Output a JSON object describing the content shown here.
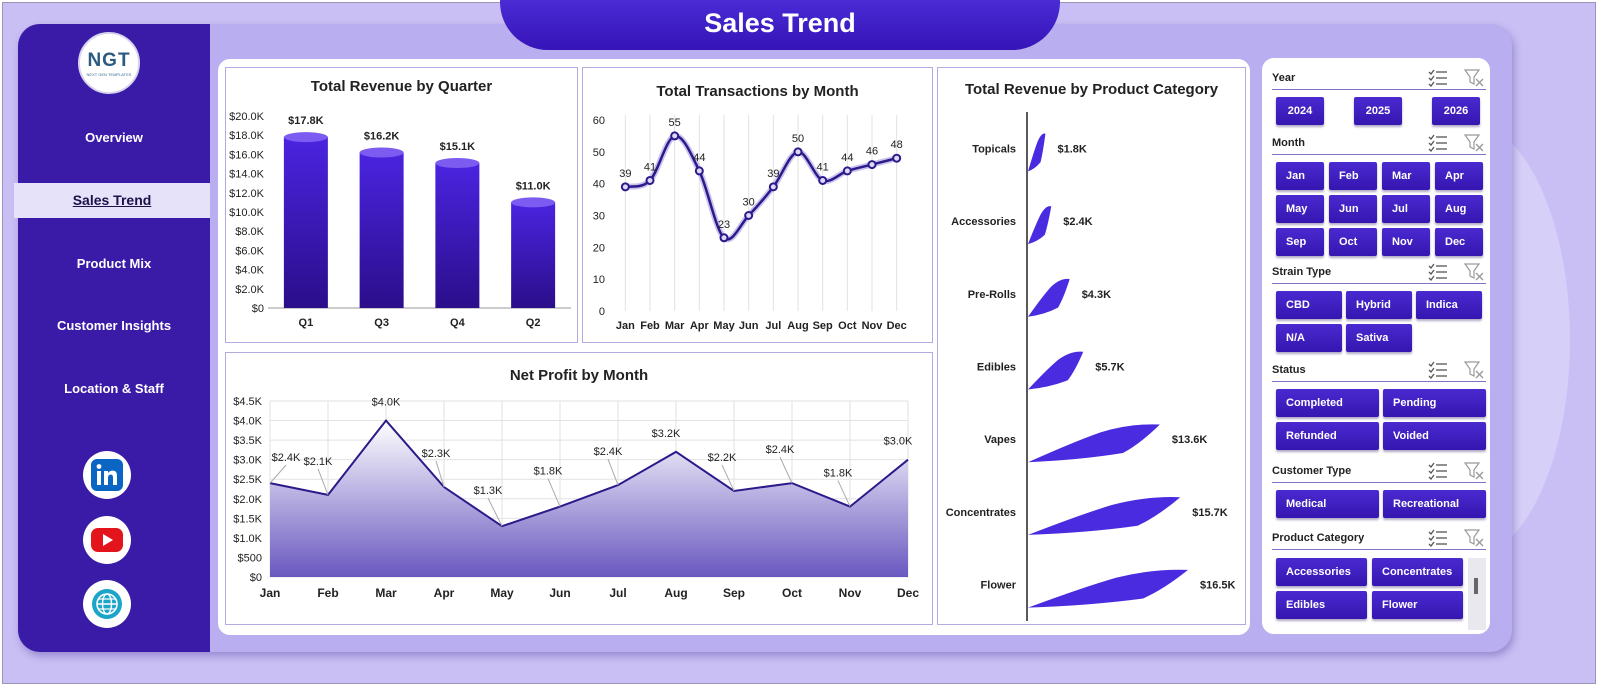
{
  "title": "Sales Trend",
  "logo": {
    "text": "NGT",
    "sub": "NEXT GEN TEMPLATES"
  },
  "nav": [
    "Overview",
    "Sales Trend",
    "Product Mix",
    "Customer Insights",
    "Location & Staff"
  ],
  "nav_active": "Sales Trend",
  "social": [
    "linkedin-icon",
    "youtube-icon",
    "globe-icon"
  ],
  "colors": {
    "primary": "#3a1ba8",
    "accent": "#4a2bd4",
    "panel": "#b9aef0"
  },
  "chart_data": [
    {
      "type": "bar",
      "title": "Total Revenue  by Quarter",
      "categories": [
        "Q1",
        "Q3",
        "Q4",
        "Q2"
      ],
      "values": [
        17.8,
        16.2,
        15.1,
        11.0
      ],
      "labels": [
        "$17.8K",
        "$16.2K",
        "$15.1K",
        "$11.0K"
      ],
      "yticks": [
        "$0",
        "$2.0K",
        "$4.0K",
        "$6.0K",
        "$8.0K",
        "$10.0K",
        "$12.0K",
        "$14.0K",
        "$16.0K",
        "$18.0K",
        "$20.0K"
      ],
      "ylim": [
        0,
        20
      ]
    },
    {
      "type": "line",
      "title": "Total Transactions by Month",
      "categories": [
        "Jan",
        "Feb",
        "Mar",
        "Apr",
        "May",
        "Jun",
        "Jul",
        "Aug",
        "Sep",
        "Oct",
        "Nov",
        "Dec"
      ],
      "values": [
        39,
        41,
        55,
        44,
        23,
        30,
        39,
        50,
        41,
        44,
        46,
        48
      ],
      "yticks": [
        "0",
        "10",
        "20",
        "30",
        "40",
        "50",
        "60"
      ],
      "ylim": [
        0,
        60
      ]
    },
    {
      "type": "area",
      "title": "Net Profit by Month",
      "categories": [
        "Jan",
        "Feb",
        "Mar",
        "Apr",
        "May",
        "Jun",
        "Jul",
        "Aug",
        "Sep",
        "Oct",
        "Nov",
        "Dec"
      ],
      "values": [
        2.4,
        2.1,
        4.0,
        2.3,
        1.3,
        1.8,
        2.35,
        3.2,
        2.2,
        2.4,
        1.8,
        3.0
      ],
      "labels": [
        "$2.4K",
        "$2.1K",
        "$4.0K",
        "$2.3K",
        "$1.3K",
        "$1.8K",
        "$2.4K",
        "$3.2K",
        "$2.2K",
        "$2.4K",
        "$1.8K",
        "$3.0K"
      ],
      "yticks": [
        "$0",
        "$500",
        "$1.0K",
        "$1.5K",
        "$2.0K",
        "$2.5K",
        "$3.0K",
        "$3.5K",
        "$4.0K",
        "$4.5K"
      ],
      "ylim": [
        0,
        4.5
      ]
    },
    {
      "type": "bar",
      "orientation": "horizontal",
      "title": "Total Revenue  by Product Category",
      "categories": [
        "Topicals",
        "Accessories",
        "Pre-Rolls",
        "Edibles",
        "Vapes",
        "Concentrates",
        "Flower"
      ],
      "values": [
        1.8,
        2.4,
        4.3,
        5.7,
        13.6,
        15.7,
        16.5
      ],
      "labels": [
        "$1.8K",
        "$2.4K",
        "$4.3K",
        "$5.7K",
        "$13.6K",
        "$15.7K",
        "$16.5K"
      ]
    }
  ],
  "slicers": {
    "year": {
      "title": "Year",
      "items": [
        "2024",
        "2025",
        "2026"
      ]
    },
    "month": {
      "title": "Month",
      "items": [
        "Jan",
        "Feb",
        "Mar",
        "Apr",
        "May",
        "Jun",
        "Jul",
        "Aug",
        "Sep",
        "Oct",
        "Nov",
        "Dec"
      ]
    },
    "strain": {
      "title": "Strain Type",
      "items": [
        "CBD",
        "Hybrid",
        "Indica",
        "N/A",
        "Sativa"
      ]
    },
    "status": {
      "title": "Status",
      "items": [
        "Completed",
        "Pending",
        "Refunded",
        "Voided"
      ]
    },
    "customer": {
      "title": "Customer Type",
      "items": [
        "Medical",
        "Recreational"
      ]
    },
    "product": {
      "title": "Product Category",
      "items": [
        "Accessories",
        "Concentrates",
        "Edibles",
        "Flower"
      ]
    }
  }
}
